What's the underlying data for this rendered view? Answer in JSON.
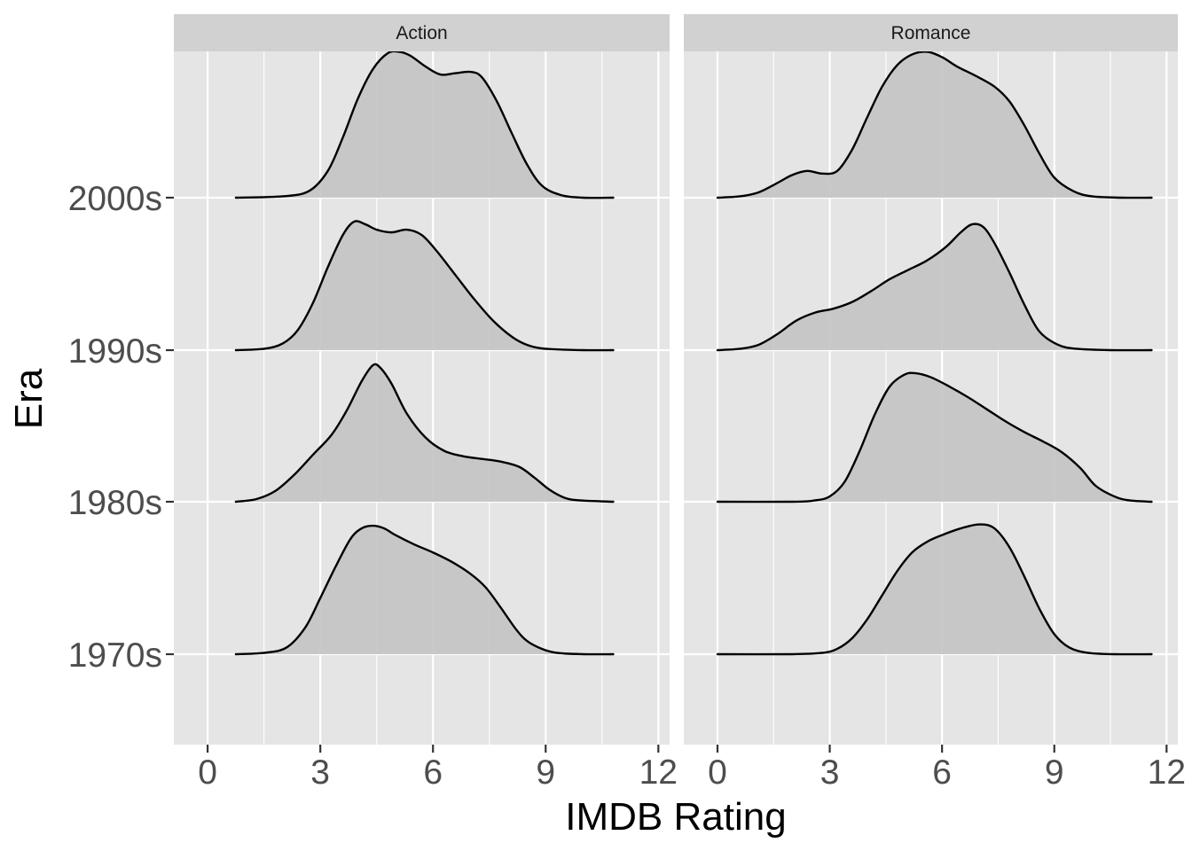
{
  "chart_data": {
    "type": "ridgeline",
    "xlabel": "IMDB Rating",
    "ylabel": "Era",
    "xlim": [
      -0.9,
      12.3
    ],
    "x_ticks": [
      0,
      3,
      6,
      9,
      12
    ],
    "x_tick_labels": [
      "0",
      "3",
      "6",
      "9",
      "12"
    ],
    "eras": [
      "1970s",
      "1980s",
      "1990s",
      "2000s"
    ],
    "grid": true,
    "legend": "none",
    "colors": {
      "panel_bg": "#e5e5e5",
      "strip_bg": "#d1d1d1",
      "grid": "#ffffff",
      "fill": "#c4c4c4",
      "line": "#000000"
    },
    "panels": [
      {
        "name": "Action",
        "x_range": [
          0.75,
          10.8
        ],
        "ridges": [
          {
            "era": "1970s",
            "points": [
              [
                0.75,
                0
              ],
              [
                1.5,
                0.01
              ],
              [
                2.1,
                0.05
              ],
              [
                2.6,
                0.2
              ],
              [
                3.0,
                0.42
              ],
              [
                3.4,
                0.65
              ],
              [
                3.8,
                0.86
              ],
              [
                4.1,
                0.94
              ],
              [
                4.4,
                0.96
              ],
              [
                4.7,
                0.94
              ],
              [
                5.0,
                0.89
              ],
              [
                5.5,
                0.82
              ],
              [
                6.0,
                0.76
              ],
              [
                6.5,
                0.69
              ],
              [
                7.0,
                0.6
              ],
              [
                7.4,
                0.5
              ],
              [
                7.8,
                0.35
              ],
              [
                8.2,
                0.19
              ],
              [
                8.5,
                0.1
              ],
              [
                8.9,
                0.04
              ],
              [
                9.3,
                0.01
              ],
              [
                10.0,
                0.0
              ],
              [
                10.8,
                0
              ]
            ]
          },
          {
            "era": "1980s",
            "points": [
              [
                0.75,
                0
              ],
              [
                1.3,
                0.02
              ],
              [
                1.8,
                0.08
              ],
              [
                2.3,
                0.2
              ],
              [
                2.8,
                0.35
              ],
              [
                3.3,
                0.5
              ],
              [
                3.7,
                0.68
              ],
              [
                4.1,
                0.9
              ],
              [
                4.4,
                1.02
              ],
              [
                4.6,
                1.0
              ],
              [
                4.9,
                0.88
              ],
              [
                5.3,
                0.66
              ],
              [
                5.8,
                0.48
              ],
              [
                6.3,
                0.38
              ],
              [
                6.8,
                0.34
              ],
              [
                7.3,
                0.32
              ],
              [
                7.8,
                0.3
              ],
              [
                8.3,
                0.26
              ],
              [
                8.7,
                0.18
              ],
              [
                9.1,
                0.09
              ],
              [
                9.5,
                0.03
              ],
              [
                9.9,
                0.01
              ],
              [
                10.8,
                0
              ]
            ]
          },
          {
            "era": "1990s",
            "points": [
              [
                0.75,
                0
              ],
              [
                1.5,
                0.01
              ],
              [
                2.0,
                0.05
              ],
              [
                2.4,
                0.15
              ],
              [
                2.8,
                0.35
              ],
              [
                3.2,
                0.62
              ],
              [
                3.6,
                0.86
              ],
              [
                3.9,
                0.96
              ],
              [
                4.2,
                0.94
              ],
              [
                4.5,
                0.9
              ],
              [
                4.9,
                0.88
              ],
              [
                5.3,
                0.9
              ],
              [
                5.7,
                0.86
              ],
              [
                6.1,
                0.74
              ],
              [
                6.6,
                0.56
              ],
              [
                7.1,
                0.38
              ],
              [
                7.6,
                0.22
              ],
              [
                8.1,
                0.1
              ],
              [
                8.5,
                0.04
              ],
              [
                9.0,
                0.01
              ],
              [
                10.0,
                0.0
              ],
              [
                10.8,
                0
              ]
            ]
          },
          {
            "era": "2000s",
            "points": [
              [
                0.75,
                0
              ],
              [
                2.0,
                0.01
              ],
              [
                2.7,
                0.05
              ],
              [
                3.2,
                0.2
              ],
              [
                3.6,
                0.45
              ],
              [
                4.0,
                0.74
              ],
              [
                4.4,
                0.96
              ],
              [
                4.8,
                1.08
              ],
              [
                5.1,
                1.09
              ],
              [
                5.4,
                1.06
              ],
              [
                5.8,
                0.98
              ],
              [
                6.2,
                0.92
              ],
              [
                6.6,
                0.93
              ],
              [
                7.0,
                0.94
              ],
              [
                7.3,
                0.9
              ],
              [
                7.7,
                0.72
              ],
              [
                8.1,
                0.48
              ],
              [
                8.5,
                0.25
              ],
              [
                8.9,
                0.09
              ],
              [
                9.4,
                0.02
              ],
              [
                10.0,
                0.0
              ],
              [
                10.8,
                0
              ]
            ]
          }
        ]
      },
      {
        "name": "Romance",
        "x_range": [
          0.0,
          11.6
        ],
        "ridges": [
          {
            "era": "1970s",
            "points": [
              [
                0.0,
                0
              ],
              [
                2.0,
                0.0
              ],
              [
                2.8,
                0.01
              ],
              [
                3.2,
                0.04
              ],
              [
                3.6,
                0.12
              ],
              [
                4.0,
                0.26
              ],
              [
                4.4,
                0.44
              ],
              [
                4.8,
                0.62
              ],
              [
                5.2,
                0.76
              ],
              [
                5.6,
                0.84
              ],
              [
                6.0,
                0.89
              ],
              [
                6.5,
                0.94
              ],
              [
                7.0,
                0.97
              ],
              [
                7.4,
                0.94
              ],
              [
                7.8,
                0.8
              ],
              [
                8.2,
                0.58
              ],
              [
                8.6,
                0.34
              ],
              [
                9.0,
                0.15
              ],
              [
                9.4,
                0.05
              ],
              [
                9.9,
                0.01
              ],
              [
                10.6,
                0.0
              ],
              [
                11.6,
                0
              ]
            ]
          },
          {
            "era": "1980s",
            "points": [
              [
                0.0,
                0
              ],
              [
                2.0,
                0.0
              ],
              [
                2.6,
                0.01
              ],
              [
                3.0,
                0.04
              ],
              [
                3.4,
                0.15
              ],
              [
                3.8,
                0.38
              ],
              [
                4.2,
                0.65
              ],
              [
                4.6,
                0.86
              ],
              [
                5.0,
                0.95
              ],
              [
                5.3,
                0.96
              ],
              [
                5.7,
                0.93
              ],
              [
                6.2,
                0.86
              ],
              [
                6.7,
                0.78
              ],
              [
                7.2,
                0.69
              ],
              [
                7.7,
                0.6
              ],
              [
                8.2,
                0.52
              ],
              [
                8.7,
                0.45
              ],
              [
                9.2,
                0.37
              ],
              [
                9.7,
                0.25
              ],
              [
                10.1,
                0.12
              ],
              [
                10.6,
                0.04
              ],
              [
                11.0,
                0.01
              ],
              [
                11.6,
                0
              ]
            ]
          },
          {
            "era": "1990s",
            "points": [
              [
                0.0,
                0
              ],
              [
                0.6,
                0.01
              ],
              [
                1.1,
                0.04
              ],
              [
                1.6,
                0.12
              ],
              [
                2.1,
                0.22
              ],
              [
                2.6,
                0.28
              ],
              [
                3.1,
                0.31
              ],
              [
                3.6,
                0.36
              ],
              [
                4.1,
                0.44
              ],
              [
                4.6,
                0.53
              ],
              [
                5.1,
                0.6
              ],
              [
                5.6,
                0.67
              ],
              [
                6.1,
                0.77
              ],
              [
                6.5,
                0.88
              ],
              [
                6.8,
                0.94
              ],
              [
                7.1,
                0.92
              ],
              [
                7.4,
                0.8
              ],
              [
                7.8,
                0.58
              ],
              [
                8.2,
                0.34
              ],
              [
                8.6,
                0.14
              ],
              [
                9.1,
                0.04
              ],
              [
                9.6,
                0.01
              ],
              [
                10.5,
                0.0
              ],
              [
                11.6,
                0
              ]
            ]
          },
          {
            "era": "2000s",
            "points": [
              [
                0.0,
                0
              ],
              [
                0.6,
                0.01
              ],
              [
                1.1,
                0.04
              ],
              [
                1.6,
                0.11
              ],
              [
                2.0,
                0.17
              ],
              [
                2.4,
                0.2
              ],
              [
                2.8,
                0.18
              ],
              [
                3.2,
                0.2
              ],
              [
                3.6,
                0.36
              ],
              [
                4.0,
                0.6
              ],
              [
                4.4,
                0.83
              ],
              [
                4.8,
                0.99
              ],
              [
                5.2,
                1.07
              ],
              [
                5.6,
                1.09
              ],
              [
                6.0,
                1.05
              ],
              [
                6.4,
                0.98
              ],
              [
                6.9,
                0.91
              ],
              [
                7.4,
                0.83
              ],
              [
                7.8,
                0.72
              ],
              [
                8.2,
                0.54
              ],
              [
                8.6,
                0.33
              ],
              [
                9.0,
                0.15
              ],
              [
                9.5,
                0.05
              ],
              [
                10.0,
                0.01
              ],
              [
                10.8,
                0.0
              ],
              [
                11.6,
                0
              ]
            ]
          }
        ]
      }
    ]
  }
}
